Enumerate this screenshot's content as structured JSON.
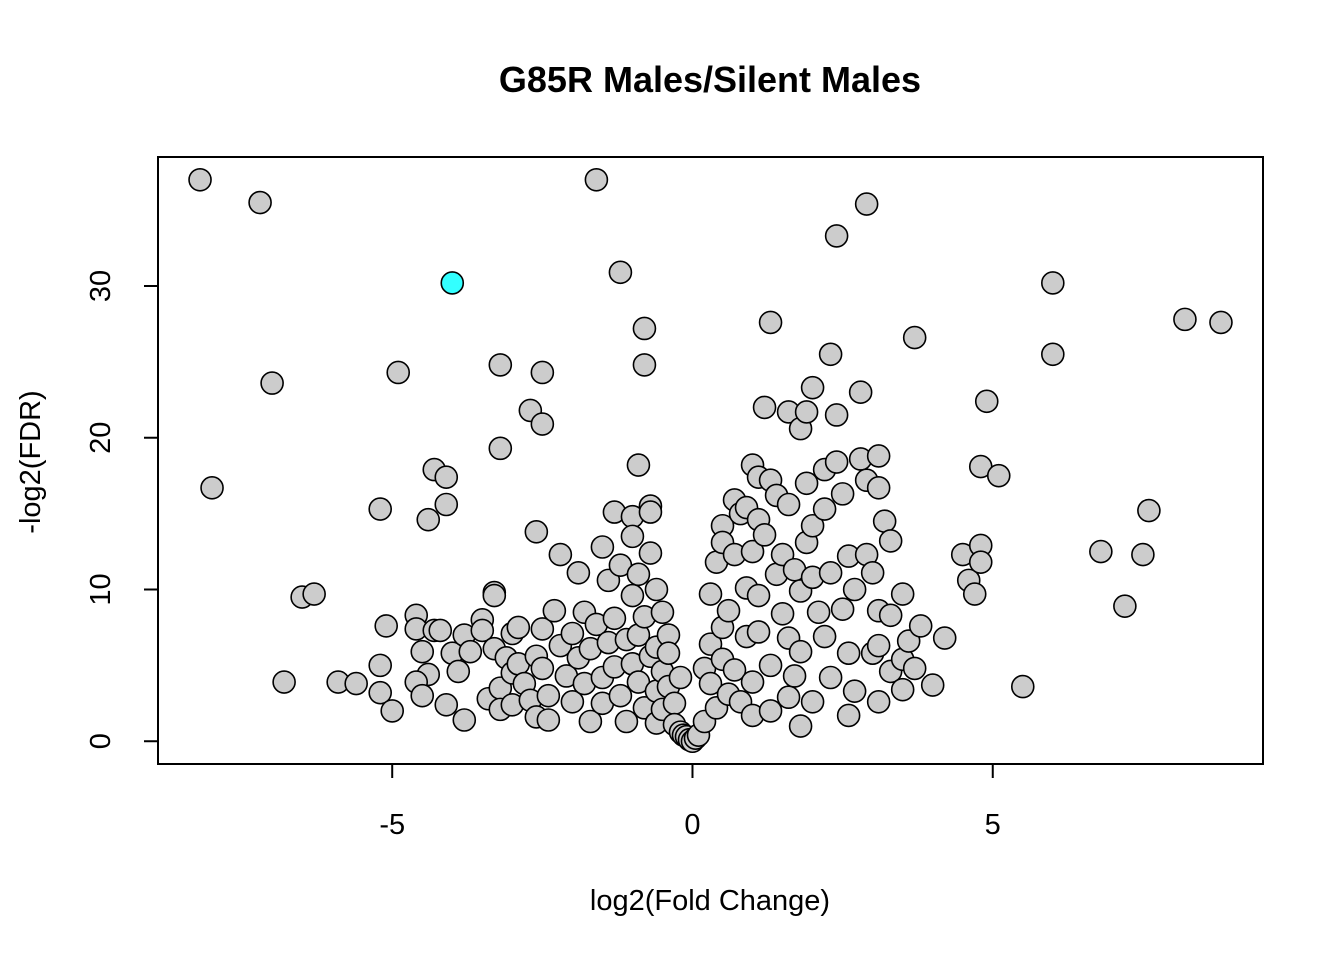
{
  "chart_data": {
    "type": "scatter",
    "title": "G85R Males/Silent Males",
    "xlabel": "log2(Fold Change)",
    "ylabel": "-log2(FDR)",
    "xlim": [
      -8.9,
      9.5
    ],
    "ylim": [
      -1.5,
      38.5
    ],
    "xticks": [
      -5,
      0,
      5
    ],
    "yticks": [
      0,
      10,
      20,
      30
    ],
    "grid": false,
    "legend": "none",
    "colors": {
      "default_fill": "#cccccc",
      "highlight_fill": "#33ffff",
      "stroke": "#000000"
    },
    "highlight": {
      "name": "",
      "x": -4.0,
      "y": 30.2
    },
    "series": [
      {
        "points": [
          [
            -8.2,
            37.0
          ],
          [
            -7.2,
            35.5
          ],
          [
            -7.0,
            23.6
          ],
          [
            -8.0,
            16.7
          ],
          [
            -6.8,
            3.9
          ],
          [
            -6.5,
            9.5
          ],
          [
            -6.3,
            9.7
          ],
          [
            -5.9,
            3.9
          ],
          [
            -5.6,
            3.8
          ],
          [
            -5.2,
            15.3
          ],
          [
            -5.2,
            5.0
          ],
          [
            -5.1,
            7.6
          ],
          [
            -5.2,
            3.2
          ],
          [
            -5.0,
            2.0
          ],
          [
            -4.9,
            24.3
          ],
          [
            -4.4,
            14.6
          ],
          [
            -4.3,
            17.9
          ],
          [
            -4.1,
            17.4
          ],
          [
            -4.1,
            15.6
          ],
          [
            -4.6,
            8.3
          ],
          [
            -4.6,
            7.4
          ],
          [
            -4.5,
            5.9
          ],
          [
            -4.4,
            4.4
          ],
          [
            -4.6,
            3.9
          ],
          [
            -4.5,
            3.0
          ],
          [
            -4.3,
            7.3
          ],
          [
            -4.2,
            7.3
          ],
          [
            -4.1,
            2.4
          ],
          [
            -4.0,
            5.8
          ],
          [
            -3.9,
            4.6
          ],
          [
            -3.8,
            1.4
          ],
          [
            -3.8,
            7.0
          ],
          [
            -3.7,
            5.9
          ],
          [
            -3.5,
            8.0
          ],
          [
            -3.5,
            7.3
          ],
          [
            -3.4,
            2.8
          ],
          [
            -3.3,
            9.8
          ],
          [
            -3.3,
            9.6
          ],
          [
            -3.3,
            6.1
          ],
          [
            -3.2,
            3.5
          ],
          [
            -3.2,
            2.1
          ],
          [
            -3.2,
            24.8
          ],
          [
            -3.2,
            19.3
          ],
          [
            -3.1,
            5.5
          ],
          [
            -3.0,
            7.1
          ],
          [
            -3.0,
            4.5
          ],
          [
            -3.0,
            2.4
          ],
          [
            -2.9,
            7.5
          ],
          [
            -2.9,
            5.1
          ],
          [
            -2.8,
            3.8
          ],
          [
            -2.7,
            2.7
          ],
          [
            -2.7,
            21.8
          ],
          [
            -2.6,
            13.8
          ],
          [
            -2.6,
            5.6
          ],
          [
            -2.6,
            1.6
          ],
          [
            -2.5,
            24.3
          ],
          [
            -2.5,
            20.9
          ],
          [
            -2.5,
            7.4
          ],
          [
            -2.5,
            4.8
          ],
          [
            -2.4,
            3.0
          ],
          [
            -2.4,
            1.4
          ],
          [
            -2.3,
            8.6
          ],
          [
            -2.2,
            6.3
          ],
          [
            -2.2,
            12.3
          ],
          [
            -2.1,
            4.3
          ],
          [
            -2.0,
            7.1
          ],
          [
            -2.0,
            2.6
          ],
          [
            -1.9,
            5.5
          ],
          [
            -1.9,
            11.1
          ],
          [
            -1.8,
            8.5
          ],
          [
            -1.8,
            3.8
          ],
          [
            -1.7,
            1.3
          ],
          [
            -1.7,
            6.1
          ],
          [
            -1.6,
            7.7
          ],
          [
            -1.6,
            37.0
          ],
          [
            -1.5,
            12.8
          ],
          [
            -1.5,
            4.2
          ],
          [
            -1.5,
            2.5
          ],
          [
            -1.4,
            10.6
          ],
          [
            -1.4,
            6.5
          ],
          [
            -1.3,
            15.1
          ],
          [
            -1.3,
            8.1
          ],
          [
            -1.3,
            4.9
          ],
          [
            -1.2,
            30.9
          ],
          [
            -1.2,
            11.6
          ],
          [
            -1.2,
            3.0
          ],
          [
            -1.1,
            6.7
          ],
          [
            -1.1,
            1.3
          ],
          [
            -1.0,
            14.8
          ],
          [
            -1.0,
            13.5
          ],
          [
            -1.0,
            9.6
          ],
          [
            -1.0,
            5.1
          ],
          [
            -0.9,
            11.0
          ],
          [
            -0.9,
            7.0
          ],
          [
            -0.9,
            3.9
          ],
          [
            -0.9,
            18.2
          ],
          [
            -0.8,
            27.2
          ],
          [
            -0.8,
            24.8
          ],
          [
            -0.8,
            8.2
          ],
          [
            -0.8,
            2.2
          ],
          [
            -0.7,
            15.5
          ],
          [
            -0.7,
            12.4
          ],
          [
            -0.7,
            15.1
          ],
          [
            -0.7,
            5.6
          ],
          [
            -0.6,
            10.0
          ],
          [
            -0.6,
            6.2
          ],
          [
            -0.6,
            3.3
          ],
          [
            -0.6,
            1.2
          ],
          [
            -0.5,
            8.5
          ],
          [
            -0.5,
            4.6
          ],
          [
            -0.5,
            2.1
          ],
          [
            -0.4,
            7.0
          ],
          [
            -0.4,
            5.8
          ],
          [
            -0.4,
            3.6
          ],
          [
            -0.3,
            2.5
          ],
          [
            -0.3,
            1.1
          ],
          [
            -0.2,
            4.2
          ],
          [
            -0.2,
            0.6
          ],
          [
            -0.15,
            0.4
          ],
          [
            -0.1,
            0.3
          ],
          [
            -0.05,
            0.1
          ],
          [
            0.0,
            0.0
          ],
          [
            0.05,
            0.2
          ],
          [
            0.1,
            0.4
          ],
          [
            0.2,
            1.3
          ],
          [
            0.2,
            4.8
          ],
          [
            0.3,
            3.8
          ],
          [
            0.3,
            6.4
          ],
          [
            0.3,
            9.7
          ],
          [
            0.4,
            2.2
          ],
          [
            0.4,
            11.8
          ],
          [
            0.5,
            14.2
          ],
          [
            0.5,
            13.1
          ],
          [
            0.5,
            7.5
          ],
          [
            0.5,
            5.4
          ],
          [
            0.6,
            3.1
          ],
          [
            0.6,
            8.6
          ],
          [
            0.7,
            15.9
          ],
          [
            0.7,
            12.3
          ],
          [
            0.7,
            4.7
          ],
          [
            0.8,
            15.0
          ],
          [
            0.8,
            2.6
          ],
          [
            0.9,
            15.4
          ],
          [
            0.9,
            10.1
          ],
          [
            0.9,
            6.9
          ],
          [
            1.0,
            18.2
          ],
          [
            1.0,
            12.5
          ],
          [
            1.0,
            3.9
          ],
          [
            1.0,
            1.7
          ],
          [
            1.1,
            17.4
          ],
          [
            1.1,
            14.6
          ],
          [
            1.1,
            9.6
          ],
          [
            1.1,
            7.2
          ],
          [
            1.2,
            22.0
          ],
          [
            1.2,
            13.6
          ],
          [
            1.3,
            27.6
          ],
          [
            1.3,
            17.2
          ],
          [
            1.3,
            5.0
          ],
          [
            1.3,
            2.0
          ],
          [
            1.4,
            16.2
          ],
          [
            1.4,
            11.0
          ],
          [
            1.5,
            12.3
          ],
          [
            1.5,
            8.4
          ],
          [
            1.6,
            21.7
          ],
          [
            1.6,
            15.6
          ],
          [
            1.6,
            6.8
          ],
          [
            1.6,
            2.9
          ],
          [
            1.7,
            4.3
          ],
          [
            1.7,
            11.3
          ],
          [
            1.8,
            20.6
          ],
          [
            1.8,
            9.9
          ],
          [
            1.8,
            5.9
          ],
          [
            1.8,
            1.0
          ],
          [
            1.9,
            21.7
          ],
          [
            1.9,
            17.0
          ],
          [
            1.9,
            13.1
          ],
          [
            2.0,
            23.3
          ],
          [
            2.0,
            14.2
          ],
          [
            2.0,
            10.8
          ],
          [
            2.0,
            2.6
          ],
          [
            2.1,
            8.5
          ],
          [
            2.2,
            17.9
          ],
          [
            2.2,
            15.3
          ],
          [
            2.2,
            6.9
          ],
          [
            2.3,
            25.5
          ],
          [
            2.3,
            11.1
          ],
          [
            2.3,
            4.2
          ],
          [
            2.4,
            33.3
          ],
          [
            2.4,
            21.5
          ],
          [
            2.4,
            18.4
          ],
          [
            2.5,
            16.3
          ],
          [
            2.5,
            8.7
          ],
          [
            2.6,
            12.2
          ],
          [
            2.6,
            5.8
          ],
          [
            2.6,
            1.7
          ],
          [
            2.7,
            10.0
          ],
          [
            2.7,
            3.3
          ],
          [
            2.8,
            23.0
          ],
          [
            2.8,
            18.6
          ],
          [
            2.9,
            35.4
          ],
          [
            2.9,
            17.2
          ],
          [
            2.9,
            12.3
          ],
          [
            3.0,
            11.1
          ],
          [
            3.0,
            5.8
          ],
          [
            3.1,
            8.6
          ],
          [
            3.1,
            6.3
          ],
          [
            3.1,
            2.6
          ],
          [
            3.1,
            18.8
          ],
          [
            3.1,
            16.7
          ],
          [
            3.2,
            14.5
          ],
          [
            3.3,
            13.2
          ],
          [
            3.3,
            8.3
          ],
          [
            3.3,
            4.6
          ],
          [
            3.5,
            9.7
          ],
          [
            3.5,
            5.4
          ],
          [
            3.5,
            3.4
          ],
          [
            3.6,
            6.6
          ],
          [
            3.7,
            26.6
          ],
          [
            3.7,
            4.8
          ],
          [
            3.8,
            7.6
          ],
          [
            4.0,
            3.7
          ],
          [
            4.2,
            6.8
          ],
          [
            4.5,
            12.3
          ],
          [
            4.6,
            10.6
          ],
          [
            4.7,
            9.7
          ],
          [
            4.8,
            12.9
          ],
          [
            4.8,
            11.8
          ],
          [
            4.8,
            18.1
          ],
          [
            4.9,
            22.4
          ],
          [
            5.1,
            17.5
          ],
          [
            5.5,
            3.6
          ],
          [
            6.0,
            30.2
          ],
          [
            6.0,
            25.5
          ],
          [
            6.8,
            12.5
          ],
          [
            7.2,
            8.9
          ],
          [
            7.5,
            12.3
          ],
          [
            7.6,
            15.2
          ],
          [
            8.2,
            27.8
          ],
          [
            8.8,
            27.6
          ]
        ]
      }
    ]
  }
}
